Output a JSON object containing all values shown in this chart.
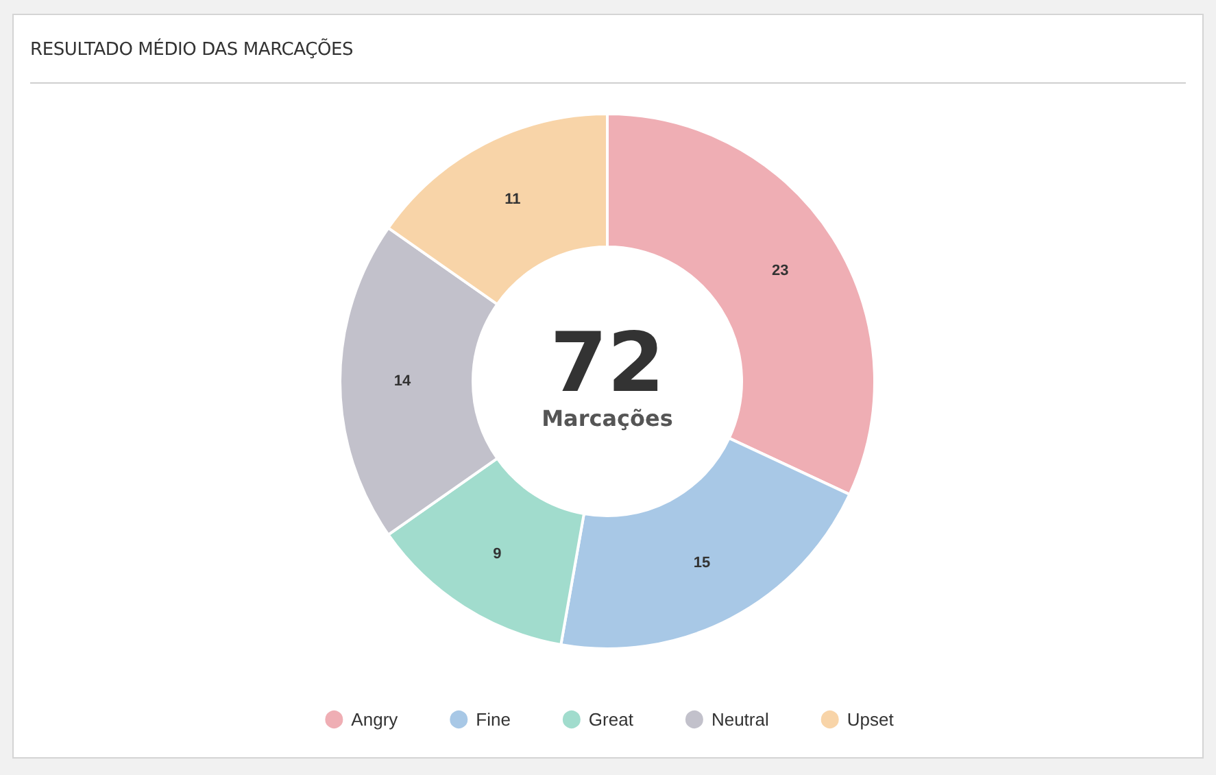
{
  "chart_data": {
    "type": "donut",
    "title": "RESULTADO MÉDIO DAS MARCAÇÕES",
    "categories": [
      "Angry",
      "Fine",
      "Great",
      "Neutral",
      "Upset"
    ],
    "values": [
      23,
      15,
      9,
      14,
      11
    ],
    "colors": [
      "#efaeb4",
      "#a8c8e6",
      "#a1dccd",
      "#c2c1cb",
      "#f8d4a8"
    ],
    "data_labels": true,
    "legend": "bottom",
    "annotations": [
      "72",
      "Marcações"
    ]
  }
}
